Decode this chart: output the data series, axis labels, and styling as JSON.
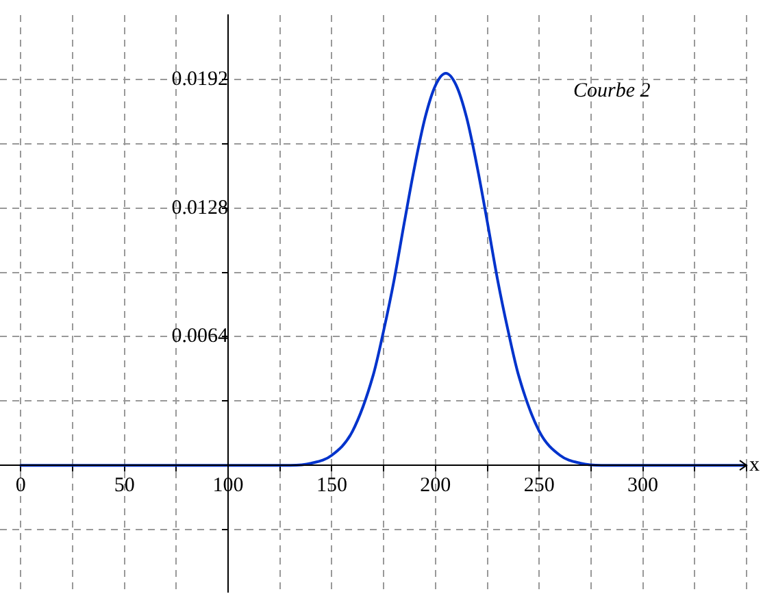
{
  "chart_data": {
    "type": "line",
    "xlabel": "x",
    "annotations": [
      "Courbe 2"
    ],
    "x": [
      0,
      50,
      100,
      120,
      130,
      140,
      150,
      160,
      170,
      175,
      180,
      185,
      190,
      195,
      200,
      205,
      210,
      215,
      220,
      225,
      230,
      235,
      240,
      250,
      260,
      270,
      280,
      300,
      350
    ],
    "series": [
      {
        "color": "#0033cc",
        "values": [
          0,
          0,
          0,
          0,
          0,
          0.0001,
          0.0005,
          0.0017,
          0.0045,
          0.0067,
          0.0092,
          0.0121,
          0.0149,
          0.0173,
          0.0189,
          0.0195,
          0.0189,
          0.0173,
          0.0149,
          0.0121,
          0.0092,
          0.0067,
          0.0045,
          0.0017,
          0.0005,
          0.0001,
          0,
          0,
          0
        ]
      }
    ],
    "xlim": [
      -10,
      350
    ],
    "ylim": [
      -0.0063,
      0.0224
    ],
    "xticks": [
      0,
      {
        "value": 25,
        "label": null
      },
      50,
      {
        "value": 75,
        "label": null
      },
      100,
      {
        "value": 125,
        "label": null
      },
      150,
      {
        "value": 175,
        "label": null
      },
      200,
      {
        "value": 225,
        "label": null
      },
      250,
      {
        "value": 275,
        "label": null
      },
      300,
      {
        "value": 325,
        "label": null
      },
      {
        "value": 350,
        "label": null
      }
    ],
    "yticks": [
      {
        "value": -0.0032,
        "label": null
      },
      {
        "value": 0,
        "label": null
      },
      {
        "value": 0.0032,
        "label": null
      },
      0.0064,
      {
        "value": 0.0096,
        "label": null
      },
      0.0128,
      {
        "value": 0.016,
        "label": null
      },
      0.0192
    ],
    "grid": true,
    "legend": false,
    "marker": "none",
    "line_style": "solid"
  }
}
